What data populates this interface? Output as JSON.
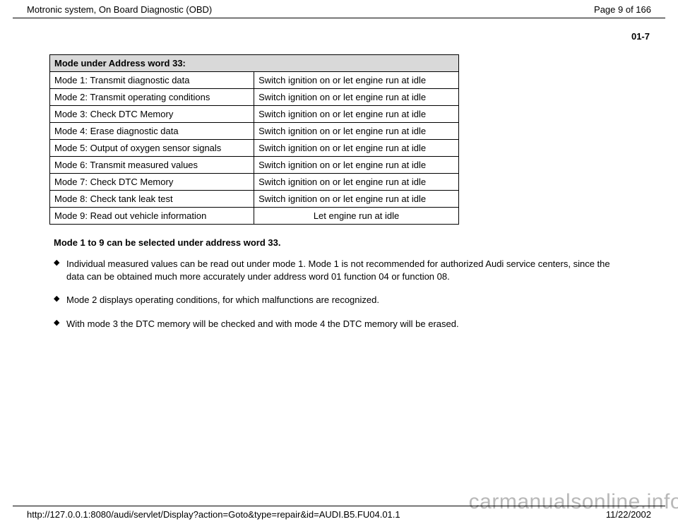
{
  "header": {
    "title": "Motronic system, On Board Diagnostic (OBD)",
    "page_indicator": "Page 9 of 166"
  },
  "section_number": "01-7",
  "table": {
    "header": "Mode under Address word 33:",
    "rows": [
      {
        "mode": "Mode 1: Transmit diagnostic data",
        "condition": "Switch ignition on or let engine run at idle",
        "center": false
      },
      {
        "mode": "Mode 2: Transmit operating conditions",
        "condition": "Switch ignition on or let engine run at idle",
        "center": false
      },
      {
        "mode": "Mode 3: Check DTC Memory",
        "condition": "Switch ignition on or let engine run at idle",
        "center": false
      },
      {
        "mode": "Mode 4: Erase diagnostic data",
        "condition": "Switch ignition on or let engine run at idle",
        "center": false
      },
      {
        "mode": "Mode 5: Output of oxygen sensor signals",
        "condition": "Switch ignition on or let engine run at idle",
        "center": false
      },
      {
        "mode": "Mode 6: Transmit measured values",
        "condition": "Switch ignition on or let engine run at idle",
        "center": false
      },
      {
        "mode": "Mode 7: Check DTC Memory",
        "condition": "Switch ignition on or let engine run at idle",
        "center": false
      },
      {
        "mode": "Mode 8: Check tank leak test",
        "condition": "Switch ignition on or let engine run at idle",
        "center": false
      },
      {
        "mode": "Mode 9: Read out vehicle information",
        "condition": "Let engine run at idle",
        "center": true
      }
    ]
  },
  "note": "Mode 1 to 9 can be selected under address word 33.",
  "bullets": [
    "Individual measured values can be read out under mode 1. Mode 1 is not recommended for authorized Audi service centers, since the data can be obtained much more accurately under address word 01 function 04 or function 08.",
    "Mode 2 displays operating conditions, for which malfunctions are recognized.",
    "With mode 3 the DTC memory will be checked and with mode 4 the DTC memory will be erased."
  ],
  "watermark": "carmanualsonline.info",
  "footer": {
    "url": "http://127.0.0.1:8080/audi/servlet/Display?action=Goto&type=repair&id=AUDI.B5.FU04.01.1",
    "date": "11/22/2002"
  }
}
